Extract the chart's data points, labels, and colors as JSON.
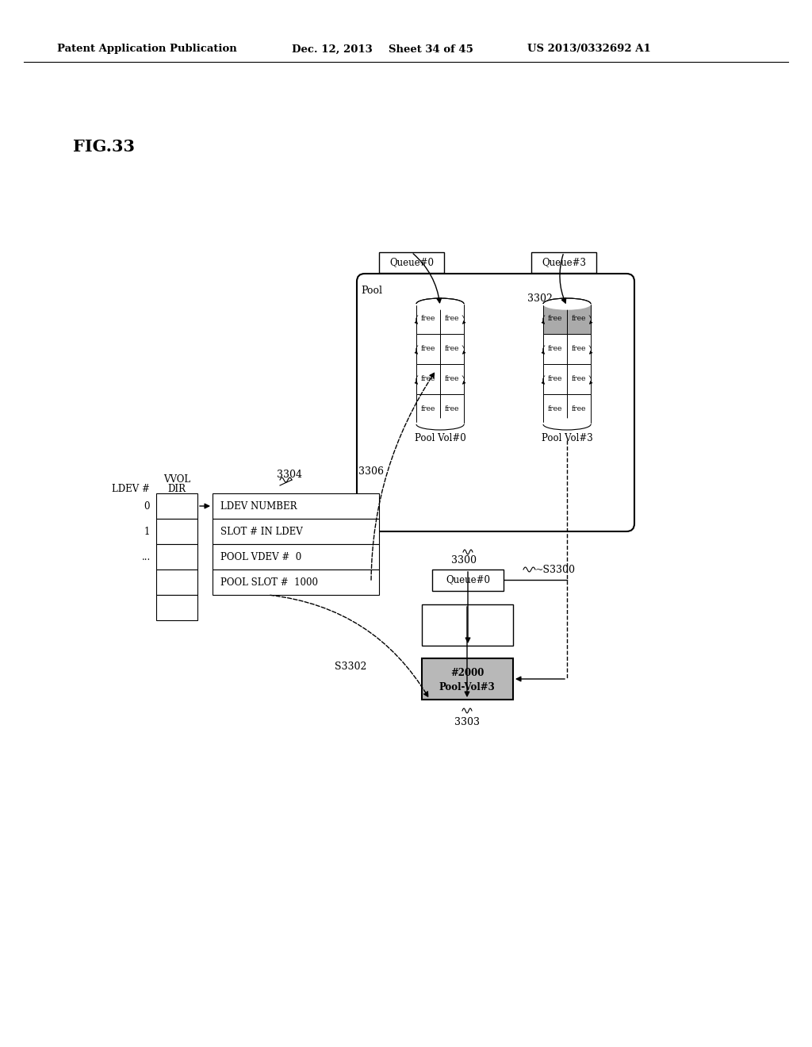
{
  "background_color": "#ffffff",
  "text_color": "#000000",
  "header_text": "Patent Application Publication",
  "header_date": "Dec. 12, 2013",
  "header_sheet": "Sheet 34 of 45",
  "header_patent": "US 2013/0332692 A1",
  "fig_label": "FIG.33",
  "pool_label": "3302",
  "pool_text": "Pool",
  "queue0_top_label": "Queue#0",
  "queue3_top_label": "Queue#3",
  "pv0_label": "Pool Vol#0",
  "pv3_label": "Pool Vol#3",
  "ldev_label": "LDEV #",
  "vvol_label1": "VVOL",
  "vvol_label2": "DIR",
  "entry_rows": [
    "LDEV NUMBER",
    "SLOT # IN LDEV",
    "POOL VDEV #  0",
    "POOL SLOT #  1000"
  ],
  "label_3304": "3304",
  "label_3306": "3306",
  "label_3300": "3300",
  "label_S3300": "~S3300",
  "queue0_lower": "Queue#0",
  "pool_vol3_line1": "Pool-Vol#3",
  "pool_vol3_line2": "#2000",
  "label_S3302": "S3302",
  "label_3303": "3303",
  "ldev_rows": [
    "0",
    "1",
    "..."
  ]
}
